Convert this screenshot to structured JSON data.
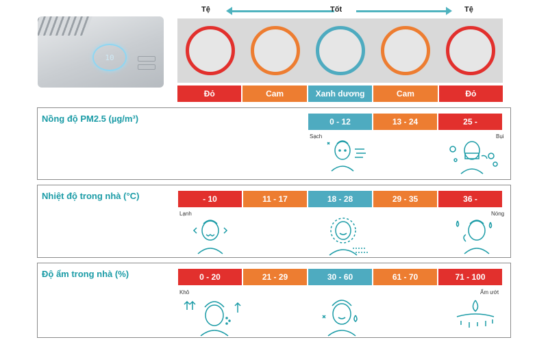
{
  "colors": {
    "red": "#e2302d",
    "orange": "#ed7d31",
    "blue": "#4eabc0",
    "teal_title": "#1a9ba6",
    "arrow": "#4fb3bf"
  },
  "device": {
    "display": "10"
  },
  "scale": {
    "left_label": "Tệ",
    "center_label": "Tốt",
    "right_label": "Tệ",
    "circles": [
      {
        "color": "red"
      },
      {
        "color": "orange"
      },
      {
        "color": "blue"
      },
      {
        "color": "orange"
      },
      {
        "color": "red"
      }
    ],
    "color_names": [
      {
        "label": "Đỏ",
        "color": "red"
      },
      {
        "label": "Cam",
        "color": "orange"
      },
      {
        "label": "Xanh dương",
        "color": "blue"
      },
      {
        "label": "Cam",
        "color": "orange"
      },
      {
        "label": "Đỏ",
        "color": "red"
      }
    ]
  },
  "sections": [
    {
      "title": "Nồng độ PM2.5 (µg/m³)",
      "ranges": [
        {
          "label": "0 - 12",
          "color": "blue"
        },
        {
          "label": "13 - 24",
          "color": "orange"
        },
        {
          "label": "25 -",
          "color": "red"
        }
      ],
      "left_caption": "Sạch",
      "right_caption": "Bụi",
      "icons": [
        "clean-air-face-icon",
        "dust-cough-face-icon"
      ]
    },
    {
      "title": "Nhiệt độ trong nhà (°C)",
      "ranges": [
        {
          "label": "- 10",
          "color": "red"
        },
        {
          "label": "11 - 17",
          "color": "orange"
        },
        {
          "label": "18 - 28",
          "color": "blue"
        },
        {
          "label": "29 - 35",
          "color": "orange"
        },
        {
          "label": "36 -",
          "color": "red"
        }
      ],
      "left_caption": "Lạnh",
      "right_caption": "Nóng",
      "icons": [
        "cold-shiver-face-icon",
        "comfortable-sun-face-icon",
        "hot-sweat-face-icon"
      ]
    },
    {
      "title": "Độ ẩm trong nhà (%)",
      "ranges": [
        {
          "label": "0 - 20",
          "color": "red"
        },
        {
          "label": "21 - 29",
          "color": "orange"
        },
        {
          "label": "30 - 60",
          "color": "blue"
        },
        {
          "label": "61 - 70",
          "color": "orange"
        },
        {
          "label": "71 - 100",
          "color": "red"
        }
      ],
      "left_caption": "Khô",
      "right_caption": "Ẩm ướt",
      "icons": [
        "dry-skin-face-icon",
        "healthy-skin-face-icon",
        "water-drops-icon"
      ]
    }
  ]
}
